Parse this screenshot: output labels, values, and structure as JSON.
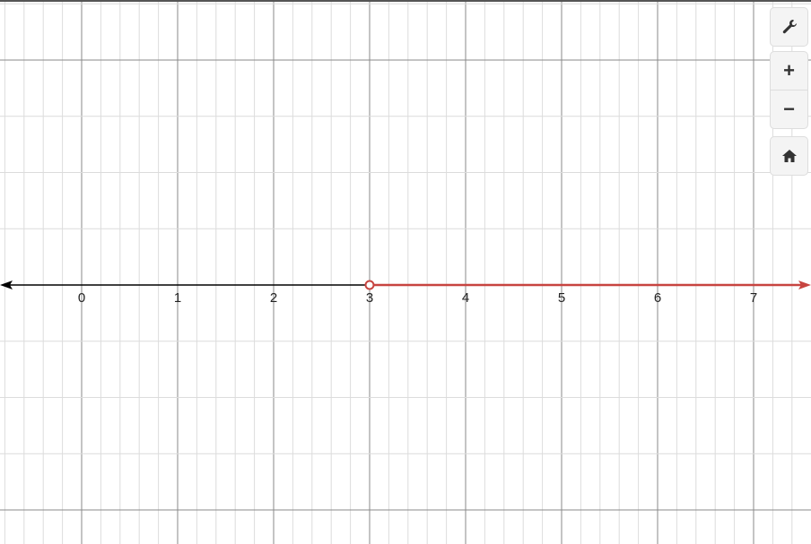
{
  "chart_data": {
    "type": "line",
    "title": "",
    "xlabel": "",
    "ylabel": "",
    "xlim": [
      -0.85,
      7.6
    ],
    "x_ticks": [
      "0",
      "1",
      "2",
      "3",
      "4",
      "5",
      "6",
      "7"
    ],
    "grid": true,
    "number_line": true,
    "series": [
      {
        "kind": "ray",
        "from": 3,
        "direction": "right",
        "endpoint": "open",
        "color": "#c74440"
      }
    ],
    "axis_color": "#000000"
  },
  "controls": {
    "settings_icon": "wrench-icon",
    "zoom_in_label": "+",
    "zoom_out_label": "−",
    "home_icon": "home-icon"
  }
}
